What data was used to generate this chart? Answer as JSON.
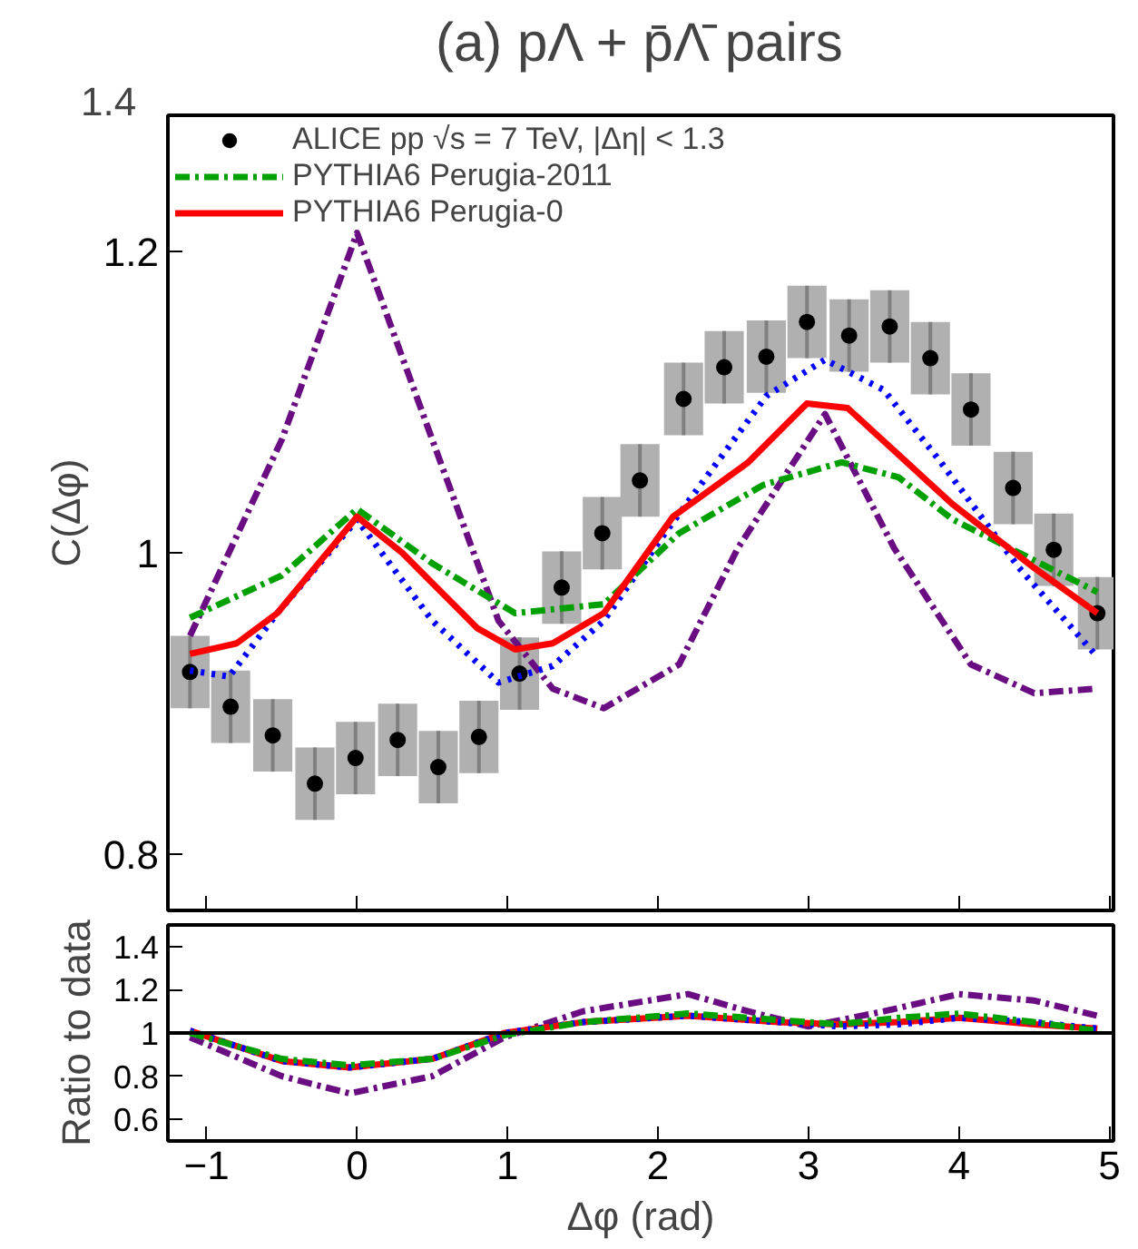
{
  "chart_data": [
    {
      "type": "line",
      "title": "(a) pΛ + p̄Λ̄ pairs",
      "ylabel": "C(Δφ)",
      "xlim": [
        -1.257,
        5.027
      ],
      "ylim": [
        0.763,
        1.29
      ],
      "xticks": [
        -1,
        0,
        1,
        2,
        3,
        4,
        5
      ],
      "yticks": [
        0.8,
        1,
        1.2
      ],
      "annotations": [
        "1.4"
      ],
      "tick_labels": "y",
      "grid": false,
      "legend": "top left",
      "series": [
        {
          "type": "scatter",
          "name": "ALICE pp √s = 7 TeV, |Δη| < 1.3",
          "color": "#000000",
          "marker": "circle",
          "x": [
            -1.11,
            -0.84,
            -0.56,
            -0.28,
            -0.01,
            0.27,
            0.54,
            0.81,
            1.08,
            1.36,
            1.63,
            1.88,
            2.17,
            2.44,
            2.72,
            2.99,
            3.27,
            3.54,
            3.81,
            4.08,
            4.36,
            4.63,
            4.92
          ],
          "values": [
            0.921,
            0.898,
            0.879,
            0.847,
            0.864,
            0.876,
            0.858,
            0.878,
            0.92,
            0.977,
            1.013,
            1.048,
            1.102,
            1.123,
            1.13,
            1.153,
            1.144,
            1.15,
            1.129,
            1.095,
            1.043,
            1.002,
            0.96
          ],
          "errors": [
            0.024,
            0.024,
            0.024,
            0.024,
            0.024,
            0.024,
            0.024,
            0.024,
            0.024,
            0.024,
            0.024,
            0.024,
            0.024,
            0.024,
            0.024,
            0.024,
            0.024,
            0.024,
            0.024,
            0.024,
            0.024,
            0.024,
            0.024
          ]
        },
        {
          "type": "line",
          "color": "#6a0d83",
          "line_style": "dashdot",
          "x": [
            -1.11,
            -0.5,
            0,
            0.5,
            0.94,
            1.3,
            1.64,
            2.14,
            2.53,
            3.11,
            3.57,
            4.08,
            4.5,
            4.92
          ],
          "values": [
            0.945,
            1.075,
            1.212,
            1.075,
            0.955,
            0.91,
            0.897,
            0.926,
            1.003,
            1.092,
            1.003,
            0.926,
            0.907,
            0.91
          ]
        },
        {
          "type": "line",
          "color": "#0000ff",
          "line_style": "dotted",
          "x": [
            -1.11,
            -0.85,
            -0.53,
            0,
            0.5,
            0.94,
            1.3,
            1.64,
            2.06,
            2.72,
            3.11,
            3.5,
            3.88,
            4.4,
            4.92
          ],
          "values": [
            0.922,
            0.918,
            0.96,
            1.022,
            0.955,
            0.914,
            0.925,
            0.955,
            1.015,
            1.104,
            1.128,
            1.108,
            1.06,
            0.99,
            0.931
          ]
        },
        {
          "type": "line",
          "name": "PYTHIA6 Perugia-2011",
          "color": "#00a000",
          "line_style": "dashdot",
          "x": [
            -1.11,
            -0.5,
            0,
            0.5,
            1.05,
            1.64,
            2.14,
            2.7,
            3.22,
            3.6,
            3.96,
            4.5,
            4.92
          ],
          "values": [
            0.957,
            0.985,
            1.029,
            0.993,
            0.96,
            0.966,
            1.013,
            1.045,
            1.06,
            1.05,
            1.022,
            0.995,
            0.974
          ]
        },
        {
          "type": "line",
          "name": "PYTHIA6 Perugia-0",
          "color": "#ff0000",
          "line_style": "solid",
          "x": [
            -1.11,
            -0.8,
            -0.53,
            0,
            0.3,
            0.51,
            0.8,
            1.05,
            1.3,
            1.64,
            2.1,
            2.6,
            2.99,
            3.26,
            3.96,
            4.5,
            4.92
          ],
          "values": [
            0.933,
            0.94,
            0.96,
            1.024,
            1.0,
            0.979,
            0.95,
            0.936,
            0.94,
            0.96,
            1.024,
            1.06,
            1.099,
            1.096,
            1.032,
            0.99,
            0.96
          ]
        }
      ]
    },
    {
      "type": "line",
      "xlabel": "Δφ (rad)",
      "ylabel": "Ratio to data",
      "xlim": [
        -1.257,
        5.027
      ],
      "ylim": [
        0.5,
        1.5
      ],
      "xticks": [
        -1,
        0,
        1,
        2,
        3,
        4,
        5
      ],
      "yticks": [
        0.6,
        0.8,
        1,
        1.2,
        1.4
      ],
      "grid": false,
      "ref_lines": [
        {
          "axis": "y",
          "value": 1,
          "color": "#000000"
        }
      ],
      "series": [
        {
          "color": "#6a0d83",
          "line_style": "dashdot",
          "x": [
            -1.11,
            -0.5,
            -0.05,
            0.5,
            0.98,
            1.5,
            2.2,
            2.6,
            3.0,
            3.5,
            4.0,
            4.5,
            4.92
          ],
          "values": [
            0.98,
            0.8,
            0.72,
            0.8,
            0.98,
            1.1,
            1.18,
            1.1,
            1.03,
            1.1,
            1.18,
            1.15,
            1.08
          ]
        },
        {
          "color": "#ff0000",
          "line_style": "solid",
          "x": [
            -1.11,
            -0.5,
            -0.05,
            0.5,
            0.98,
            1.5,
            2.2,
            2.8,
            3.2,
            3.6,
            4.0,
            4.5,
            4.92
          ],
          "values": [
            1.01,
            0.87,
            0.84,
            0.88,
            1.0,
            1.05,
            1.08,
            1.05,
            1.04,
            1.05,
            1.07,
            1.04,
            1.02
          ]
        },
        {
          "color": "#0000ff",
          "line_style": "dotted",
          "x": [
            -1.11,
            -0.5,
            -0.05,
            0.5,
            0.98,
            1.5,
            2.2,
            2.8,
            3.2,
            3.6,
            4.0,
            4.5,
            4.92
          ],
          "values": [
            1.01,
            0.87,
            0.84,
            0.88,
            1.0,
            1.05,
            1.08,
            1.05,
            1.03,
            1.04,
            1.07,
            1.05,
            1.02
          ]
        },
        {
          "color": "#00a000",
          "line_style": "dashdot",
          "x": [
            -1.11,
            -0.5,
            -0.05,
            0.5,
            0.98,
            1.5,
            2.2,
            2.8,
            3.2,
            3.6,
            4.0,
            4.5,
            4.92
          ],
          "values": [
            1.0,
            0.88,
            0.85,
            0.88,
            0.99,
            1.05,
            1.09,
            1.06,
            1.04,
            1.07,
            1.09,
            1.05,
            1.01
          ]
        }
      ]
    }
  ]
}
